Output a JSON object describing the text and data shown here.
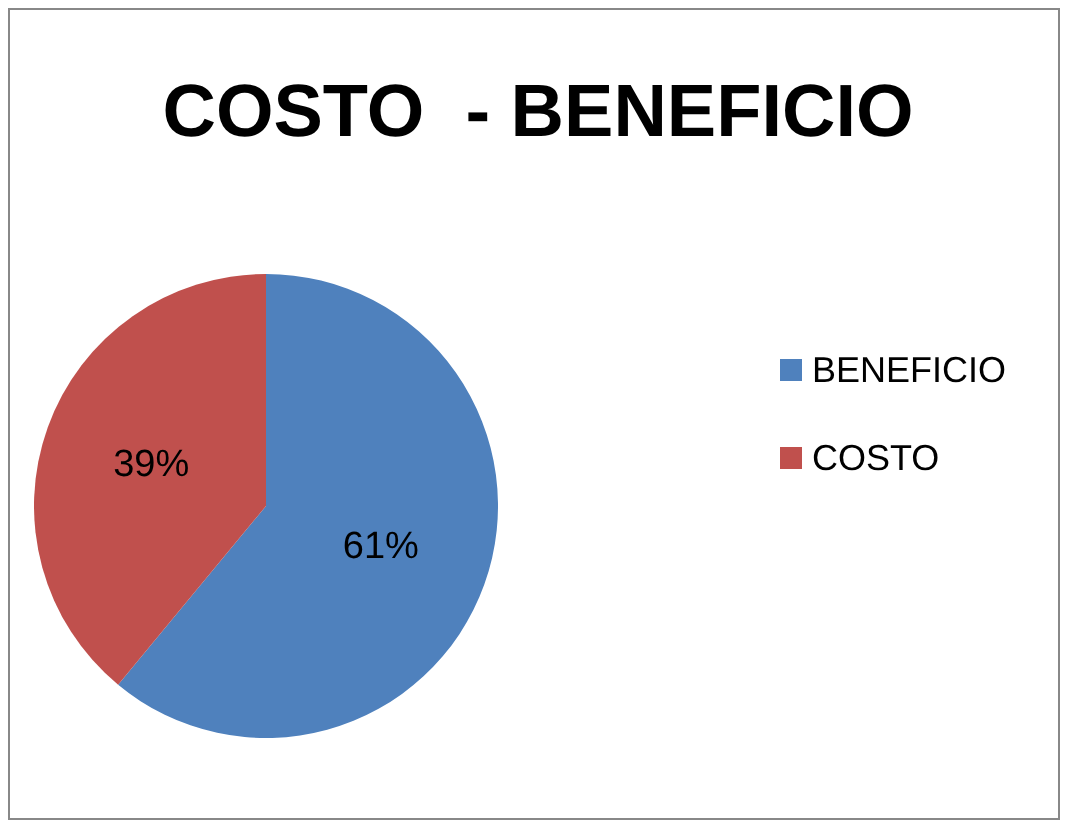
{
  "chart_data": {
    "type": "pie",
    "title": "COSTO  - BENEFICIO",
    "categories": [
      "BENEFICIO",
      "COSTO"
    ],
    "values": [
      61,
      39
    ],
    "colors": [
      "#4f81bd",
      "#c0504d"
    ],
    "value_labels": [
      "61%",
      "39%"
    ],
    "legend": "right"
  }
}
